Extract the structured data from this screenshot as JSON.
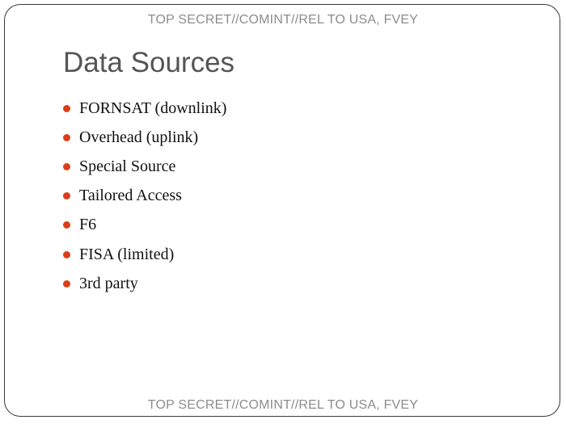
{
  "header": {
    "classification": "TOP SECRET//COMINT//REL TO USA, FVEY"
  },
  "slide": {
    "title": "Data Sources",
    "bullets": [
      "FORNSAT (downlink)",
      "Overhead (uplink)",
      "Special Source",
      "Tailored Access",
      "F6",
      "FISA (limited)",
      "3rd party"
    ]
  },
  "footer": {
    "classification": "TOP SECRET//COMINT//REL TO USA, FVEY"
  },
  "colors": {
    "bullet": "#d9401a",
    "title": "#555555",
    "classification": "#8c8c8c"
  }
}
